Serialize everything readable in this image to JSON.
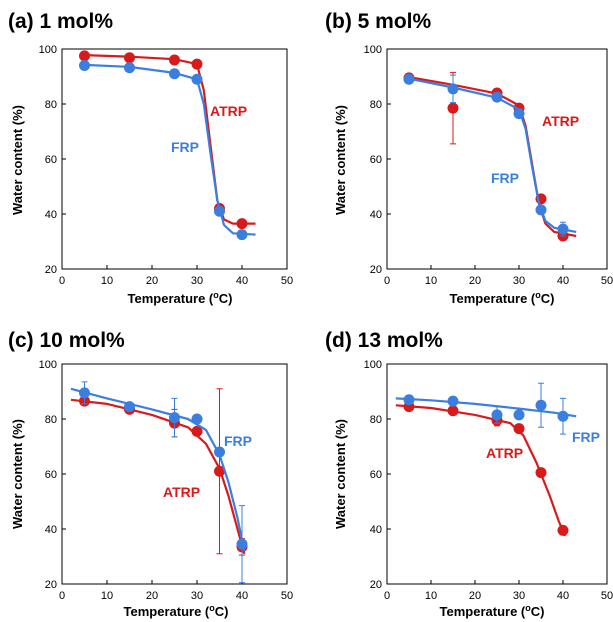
{
  "colors": {
    "ATRP": "#d91a1a",
    "FRP": "#3a7fe0",
    "axis": "#000000"
  },
  "chart_data": [
    {
      "type": "scatter",
      "title": "(a) 1 mol%",
      "xlabel": "Temperature (",
      "xlabel_deg": "o",
      "xlabel_unit": "C)",
      "ylabel": "Water content (%)",
      "xlim": [
        0,
        50
      ],
      "ylim": [
        20,
        100
      ],
      "xticks": [
        "0",
        "10",
        "20",
        "30",
        "40",
        "50"
      ],
      "yticks": [
        "20",
        "40",
        "60",
        "80",
        "100"
      ],
      "series": [
        {
          "name": "ATRP",
          "points": [
            {
              "x": 5,
              "y": 97.5
            },
            {
              "x": 15,
              "y": 96.8
            },
            {
              "x": 25,
              "y": 96
            },
            {
              "x": 30,
              "y": 94.5
            },
            {
              "x": 35,
              "y": 42
            },
            {
              "x": 40,
              "y": 36.5
            }
          ],
          "curve": [
            [
              5,
              97.8
            ],
            [
              15,
              97.2
            ],
            [
              25,
              96.3
            ],
            [
              30,
              94.5
            ],
            [
              31.5,
              85
            ],
            [
              33,
              65
            ],
            [
              34.5,
              45
            ],
            [
              36,
              38
            ],
            [
              38,
              36.5
            ],
            [
              43,
              36.5
            ]
          ]
        },
        {
          "name": "FRP",
          "points": [
            {
              "x": 5,
              "y": 94
            },
            {
              "x": 15,
              "y": 93.2
            },
            {
              "x": 25,
              "y": 91
            },
            {
              "x": 30,
              "y": 89
            },
            {
              "x": 35,
              "y": 41
            },
            {
              "x": 40,
              "y": 32.5
            }
          ],
          "curve": [
            [
              5,
              94.2
            ],
            [
              15,
              93.5
            ],
            [
              25,
              91.3
            ],
            [
              30,
              89
            ],
            [
              31.5,
              80
            ],
            [
              33,
              62
            ],
            [
              34.5,
              45
            ],
            [
              36,
              36
            ],
            [
              38,
              33
            ],
            [
              43,
              32.5
            ]
          ]
        }
      ]
    },
    {
      "type": "scatter",
      "title": "(b) 5 mol%",
      "xlabel": "Temperature (",
      "xlabel_deg": "o",
      "xlabel_unit": "C)",
      "ylabel": "Water content (%)",
      "xlim": [
        0,
        50
      ],
      "ylim": [
        20,
        100
      ],
      "xticks": [
        "0",
        "10",
        "20",
        "30",
        "40",
        "50"
      ],
      "yticks": [
        "20",
        "40",
        "60",
        "80",
        "100"
      ],
      "series": [
        {
          "name": "ATRP",
          "points": [
            {
              "x": 5,
              "y": 89.5
            },
            {
              "x": 15,
              "y": 78.5,
              "err": 13
            },
            {
              "x": 25,
              "y": 84
            },
            {
              "x": 30,
              "y": 78.5
            },
            {
              "x": 35,
              "y": 45.5
            },
            {
              "x": 40,
              "y": 32
            }
          ],
          "curve": [
            [
              5,
              89.8
            ],
            [
              15,
              87
            ],
            [
              25,
              83.8
            ],
            [
              30,
              79.5
            ],
            [
              31.5,
              72
            ],
            [
              33,
              58
            ],
            [
              34.5,
              44
            ],
            [
              36,
              36.5
            ],
            [
              38,
              33.5
            ],
            [
              43,
              32
            ]
          ]
        },
        {
          "name": "FRP",
          "points": [
            {
              "x": 5,
              "y": 89
            },
            {
              "x": 15,
              "y": 85.5,
              "err": 5
            },
            {
              "x": 25,
              "y": 82.5
            },
            {
              "x": 30,
              "y": 76.5
            },
            {
              "x": 35,
              "y": 41.5
            },
            {
              "x": 40,
              "y": 34.5,
              "err": 2.5
            }
          ],
          "curve": [
            [
              5,
              89.2
            ],
            [
              15,
              86
            ],
            [
              25,
              82.3
            ],
            [
              30,
              78
            ],
            [
              31.5,
              71
            ],
            [
              33,
              57
            ],
            [
              34.5,
              44
            ],
            [
              36,
              37.5
            ],
            [
              38,
              35
            ],
            [
              43,
              33.5
            ]
          ]
        }
      ]
    },
    {
      "type": "scatter",
      "title": "(c) 10 mol%",
      "xlabel": "Temperature (",
      "xlabel_deg": "o",
      "xlabel_unit": "C)",
      "ylabel": "Water content (%)",
      "xlim": [
        0,
        50
      ],
      "ylim": [
        20,
        100
      ],
      "xticks": [
        "0",
        "10",
        "20",
        "30",
        "40",
        "50"
      ],
      "yticks": [
        "20",
        "40",
        "60",
        "80",
        "100"
      ],
      "series": [
        {
          "name": "ATRP",
          "points": [
            {
              "x": 5,
              "y": 86.5
            },
            {
              "x": 15,
              "y": 83.5
            },
            {
              "x": 25,
              "y": 78.5,
              "err": 5
            },
            {
              "x": 30,
              "y": 75.5
            },
            {
              "x": 35,
              "y": 61,
              "err": 30
            },
            {
              "x": 40,
              "y": 33.5,
              "err": 3
            }
          ],
          "curve": [
            [
              2,
              87
            ],
            [
              10,
              85.5
            ],
            [
              20,
              81.5
            ],
            [
              28,
              77
            ],
            [
              32,
              71
            ],
            [
              35,
              62
            ],
            [
              37,
              52
            ],
            [
              39,
              40
            ],
            [
              40.5,
              31
            ]
          ]
        },
        {
          "name": "FRP",
          "points": [
            {
              "x": 5,
              "y": 89.5,
              "err": 4
            },
            {
              "x": 15,
              "y": 84.5
            },
            {
              "x": 25,
              "y": 80.5,
              "err": 7
            },
            {
              "x": 30,
              "y": 80
            },
            {
              "x": 35,
              "y": 68
            },
            {
              "x": 40,
              "y": 34.5,
              "err": 14
            }
          ],
          "curve": [
            [
              2,
              91
            ],
            [
              10,
              87.5
            ],
            [
              20,
              83.5
            ],
            [
              28,
              80
            ],
            [
              32,
              76
            ],
            [
              35,
              67
            ],
            [
              37,
              57
            ],
            [
              39,
              44
            ],
            [
              40.5,
              32
            ]
          ]
        }
      ]
    },
    {
      "type": "scatter",
      "title": "(d) 13 mol%",
      "xlabel": "Temperature (",
      "xlabel_deg": "o",
      "xlabel_unit": "C)",
      "ylabel": "Water content (%)",
      "xlim": [
        0,
        50
      ],
      "ylim": [
        20,
        100
      ],
      "xticks": [
        "0",
        "10",
        "20",
        "30",
        "40",
        "50"
      ],
      "yticks": [
        "20",
        "40",
        "60",
        "80",
        "100"
      ],
      "series": [
        {
          "name": "ATRP",
          "points": [
            {
              "x": 5,
              "y": 84.5
            },
            {
              "x": 15,
              "y": 83
            },
            {
              "x": 25,
              "y": 79.5,
              "err": 2
            },
            {
              "x": 30,
              "y": 76.5
            },
            {
              "x": 35,
              "y": 60.5
            },
            {
              "x": 40,
              "y": 39.5
            }
          ],
          "curve": [
            [
              2,
              85
            ],
            [
              10,
              84
            ],
            [
              20,
              81.5
            ],
            [
              28,
              78.5
            ],
            [
              31,
              74
            ],
            [
              34,
              64
            ],
            [
              37,
              52
            ],
            [
              39,
              43
            ],
            [
              40.5,
              37.5
            ]
          ]
        },
        {
          "name": "FRP",
          "points": [
            {
              "x": 5,
              "y": 87
            },
            {
              "x": 15,
              "y": 86.5
            },
            {
              "x": 25,
              "y": 81.5,
              "err": 3
            },
            {
              "x": 30,
              "y": 81.5
            },
            {
              "x": 35,
              "y": 85,
              "err": 8
            },
            {
              "x": 40,
              "y": 81,
              "err": 6.5
            }
          ],
          "curve": [
            [
              2,
              87.5
            ],
            [
              10,
              86.8
            ],
            [
              20,
              85.5
            ],
            [
              30,
              83.8
            ],
            [
              38,
              82.3
            ],
            [
              43,
              81
            ]
          ]
        }
      ]
    }
  ]
}
